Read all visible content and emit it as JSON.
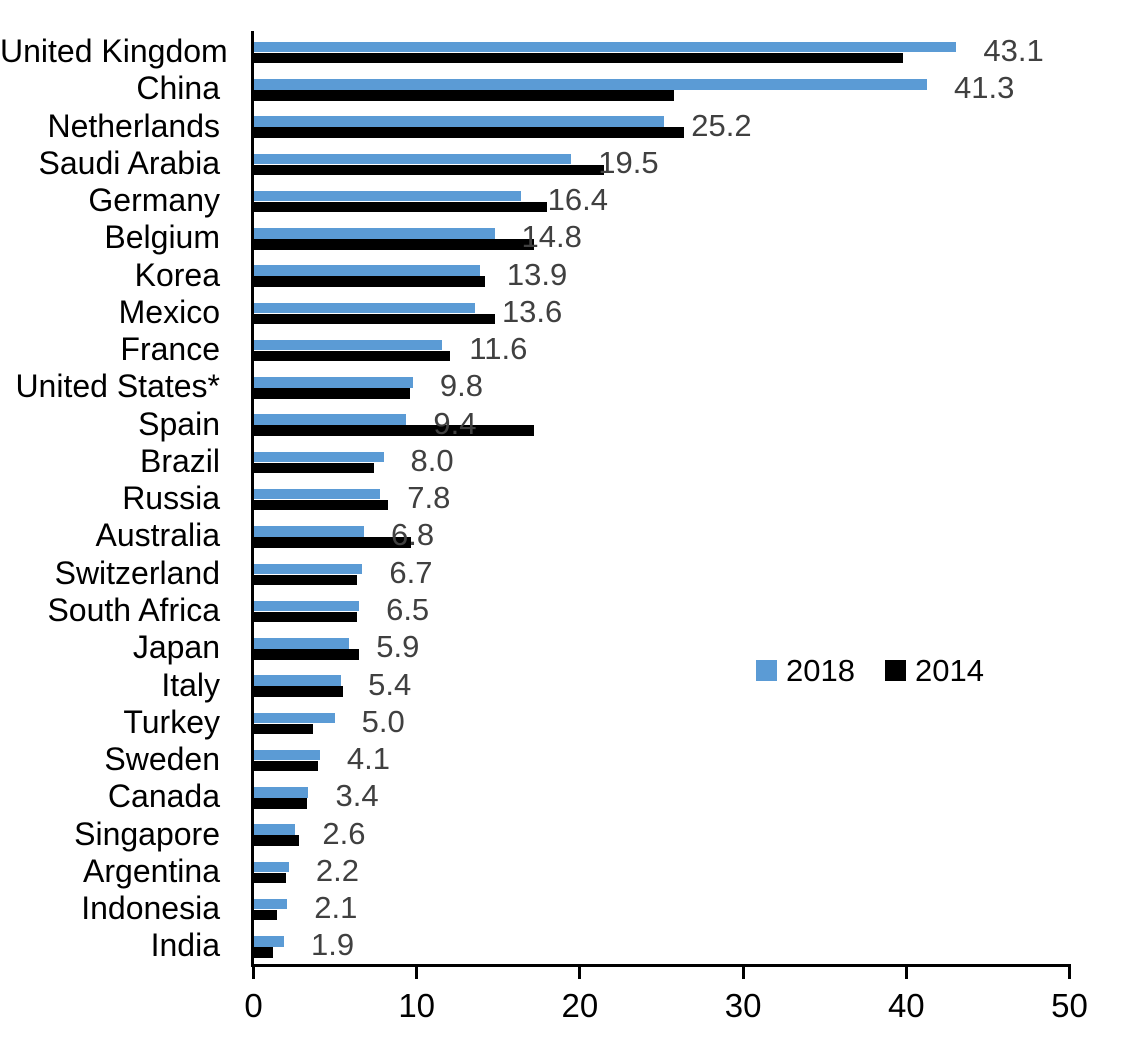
{
  "chart_data": {
    "type": "bar",
    "orientation": "horizontal",
    "title": "",
    "xlabel": "",
    "ylabel": "",
    "xlim": [
      0,
      50
    ],
    "x_ticks": [
      0,
      10,
      20,
      30,
      40,
      50
    ],
    "x_tick_labels": [
      "0",
      "10",
      "20",
      "30",
      "40",
      "50"
    ],
    "grid": false,
    "categories": [
      "United Kingdom",
      "China",
      "Netherlands",
      "Saudi Arabia",
      "Germany",
      "Belgium",
      "Korea",
      "Mexico",
      "France",
      "United States*",
      "Spain",
      "Brazil",
      "Russia",
      "Australia",
      "Switzerland",
      "South Africa",
      "Japan",
      "Italy",
      "Turkey",
      "Sweden",
      "Canada",
      "Singapore",
      "Argentina",
      "Indonesia",
      "India"
    ],
    "series": [
      {
        "name": "2018",
        "color": "#5B9BD5",
        "values": [
          43.1,
          41.3,
          25.2,
          19.5,
          16.4,
          14.8,
          13.9,
          13.6,
          11.6,
          9.8,
          9.4,
          8.0,
          7.8,
          6.8,
          6.7,
          6.5,
          5.9,
          5.4,
          5.0,
          4.1,
          3.4,
          2.6,
          2.2,
          2.1,
          1.9
        ]
      },
      {
        "name": "2014",
        "color": "#000000",
        "values": [
          39.8,
          25.8,
          26.4,
          21.5,
          18.0,
          17.2,
          14.2,
          14.8,
          12.1,
          9.6,
          17.2,
          7.4,
          8.3,
          9.7,
          6.4,
          6.4,
          6.5,
          5.5,
          3.7,
          4.0,
          3.3,
          2.8,
          2.0,
          1.5,
          1.2
        ]
      }
    ],
    "data_labels": {
      "series": "2018",
      "values": [
        "43.1",
        "41.3",
        "25.2",
        "19.5",
        "16.4",
        "14.8",
        "13.9",
        "13.6",
        "11.6",
        "9.8",
        "9.4",
        "8.0",
        "7.8",
        "6.8",
        "6.7",
        "6.5",
        "5.9",
        "5.4",
        "5.0",
        "4.1",
        "3.4",
        "2.6",
        "2.2",
        "2.1",
        "1.9"
      ],
      "color": "#404040"
    },
    "legend": {
      "position": "inside-right",
      "entries": [
        {
          "label": "2018",
          "color": "#5B9BD5"
        },
        {
          "label": "2014",
          "color": "#000000"
        }
      ]
    }
  },
  "colors": {
    "series_2018": "#5B9BD5",
    "series_2014": "#000000",
    "axis": "#000000",
    "value_label": "#404040",
    "background": "#ffffff"
  }
}
